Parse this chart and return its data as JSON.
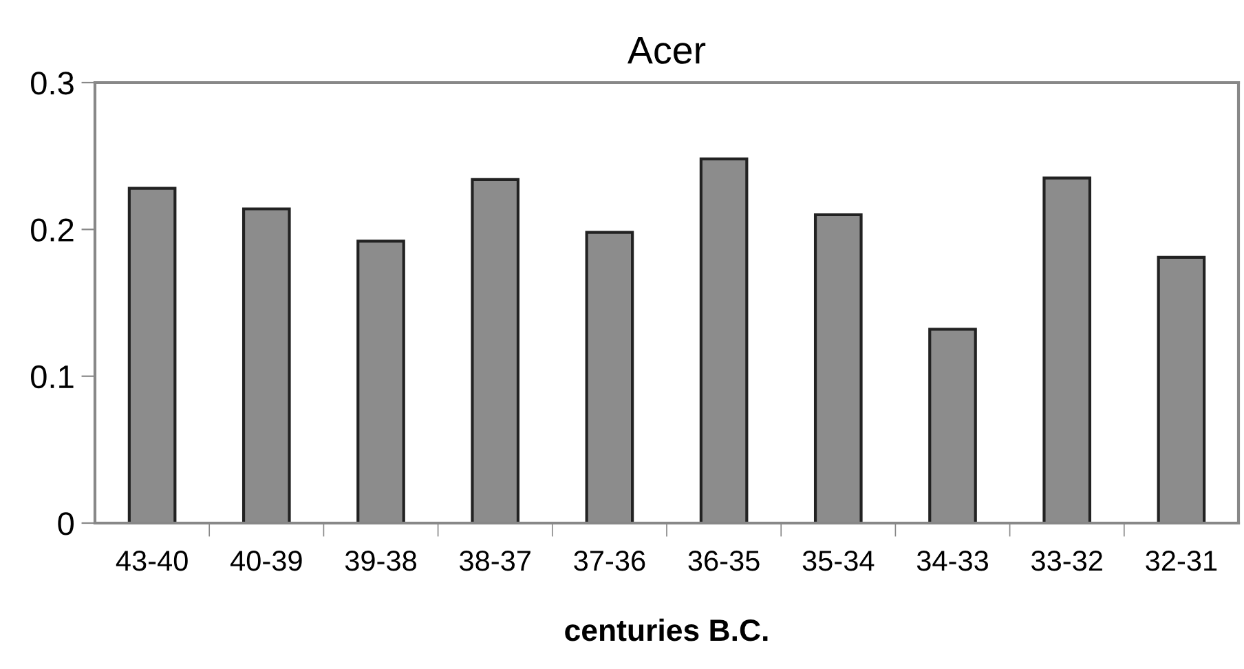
{
  "chart_data": {
    "type": "bar",
    "title": "Acer",
    "xlabel": "centuries B.C.",
    "categories": [
      "43-40",
      "40-39",
      "39-38",
      "38-37",
      "37-36",
      "36-35",
      "35-34",
      "34-33",
      "33-32",
      "32-31"
    ],
    "values": [
      0.228,
      0.214,
      0.192,
      0.234,
      0.198,
      0.248,
      0.21,
      0.132,
      0.235,
      0.181
    ],
    "color": "#8c8c8c",
    "ylim": [
      0,
      0.3
    ],
    "yticks": [
      0,
      0.1,
      0.2,
      0.3
    ],
    "grid": false
  }
}
